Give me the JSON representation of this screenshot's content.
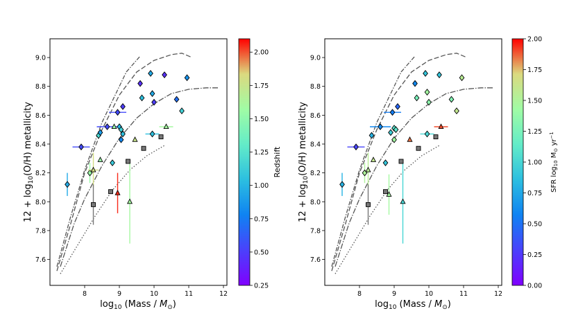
{
  "chart_data": [
    {
      "type": "scatter",
      "xlabel": "log$_{10}$ (Mass / $M_\\odot$)",
      "ylabel": "12 + log$_{10}$(O/H) metallicity",
      "x_ticks": [
        "8",
        "9",
        "10",
        "11",
        "12"
      ],
      "y_ticks": [
        "7.6",
        "7.8",
        "8.0",
        "8.2",
        "8.4",
        "8.6",
        "8.8",
        "9.0"
      ],
      "xlim": [
        7.0,
        12.1
      ],
      "ylim": [
        7.42,
        9.13
      ],
      "colorbar": {
        "label": "Redshift",
        "range": [
          0.25,
          2.1
        ],
        "ticks": [
          "0.25",
          "0.50",
          "0.75",
          "1.00",
          "1.25",
          "1.50",
          "1.75",
          "2.00"
        ]
      },
      "points": [
        {
          "x": 7.5,
          "y": 8.12,
          "marker": "diamond",
          "c": 0.95,
          "yerr": 0.08
        },
        {
          "x": 7.9,
          "y": 8.38,
          "marker": "diamond",
          "c": 0.55,
          "xerr": 0.25
        },
        {
          "x": 8.15,
          "y": 8.2,
          "marker": "diamond",
          "c": 1.55,
          "yerr": 0.07
        },
        {
          "x": 8.25,
          "y": 8.22,
          "marker": "triangle",
          "c": 1.8,
          "yerr": 0.12,
          "xerr": 0.15
        },
        {
          "x": 8.4,
          "y": 8.46,
          "marker": "diamond",
          "c": 1.2
        },
        {
          "x": 8.45,
          "y": 8.48,
          "marker": "diamond",
          "c": 0.9
        },
        {
          "x": 8.45,
          "y": 8.29,
          "marker": "triangle",
          "c": 1.55
        },
        {
          "x": 8.65,
          "y": 8.52,
          "marker": "diamond",
          "c": 0.55,
          "xerr": 0.3
        },
        {
          "x": 8.8,
          "y": 8.27,
          "marker": "diamond",
          "c": 1.1
        },
        {
          "x": 8.85,
          "y": 8.52,
          "marker": "triangle",
          "c": 1.55
        },
        {
          "x": 8.95,
          "y": 8.62,
          "marker": "diamond",
          "c": 0.55,
          "xerr": 0.25
        },
        {
          "x": 9.0,
          "y": 8.52,
          "marker": "diamond",
          "c": 1.0
        },
        {
          "x": 9.05,
          "y": 8.5,
          "marker": "diamond",
          "c": 1.15
        },
        {
          "x": 9.05,
          "y": 8.43,
          "marker": "diamond",
          "c": 0.8
        },
        {
          "x": 9.1,
          "y": 8.47,
          "marker": "diamond",
          "c": 1.05
        },
        {
          "x": 9.1,
          "y": 8.66,
          "marker": "diamond",
          "c": 0.5
        },
        {
          "x": 9.45,
          "y": 8.43,
          "marker": "triangle",
          "c": 1.75
        },
        {
          "x": 9.6,
          "y": 8.82,
          "marker": "diamond",
          "c": 0.45
        },
        {
          "x": 9.65,
          "y": 8.72,
          "marker": "diamond",
          "c": 1.05
        },
        {
          "x": 9.9,
          "y": 8.89,
          "marker": "diamond",
          "c": 0.95
        },
        {
          "x": 9.95,
          "y": 8.75,
          "marker": "diamond",
          "c": 0.95
        },
        {
          "x": 10.0,
          "y": 8.69,
          "marker": "diamond",
          "c": 0.5
        },
        {
          "x": 9.95,
          "y": 8.47,
          "marker": "diamond",
          "c": 1.05,
          "xerr": 0.2
        },
        {
          "x": 10.3,
          "y": 8.88,
          "marker": "diamond",
          "c": 0.45
        },
        {
          "x": 10.35,
          "y": 8.52,
          "marker": "triangle",
          "c": 1.6,
          "xerr": 0.2
        },
        {
          "x": 10.65,
          "y": 8.71,
          "marker": "diamond",
          "c": 0.7
        },
        {
          "x": 10.8,
          "y": 8.63,
          "marker": "diamond",
          "c": 1.15
        },
        {
          "x": 10.95,
          "y": 8.86,
          "marker": "diamond",
          "c": 0.85
        },
        {
          "x": 8.95,
          "y": 8.06,
          "marker": "triangle",
          "c": 2.05,
          "yerr": 0.14
        },
        {
          "x": 9.3,
          "y": 8.0,
          "marker": "triangle",
          "c": 1.6,
          "yerr": 0.29
        },
        {
          "x": 8.25,
          "y": 7.98,
          "marker": "square",
          "c": null,
          "yerr": 0.14
        },
        {
          "x": 8.75,
          "y": 8.07,
          "marker": "square",
          "c": null
        },
        {
          "x": 9.25,
          "y": 8.28,
          "marker": "square",
          "c": null
        },
        {
          "x": 9.7,
          "y": 8.37,
          "marker": "square",
          "c": null
        },
        {
          "x": 10.2,
          "y": 8.45,
          "marker": "square",
          "c": null
        }
      ]
    },
    {
      "type": "scatter",
      "xlabel": "log$_{10}$ (Mass / $M_\\odot$)",
      "ylabel": "12 + log$_{10}$(O/H) metallicity",
      "x_ticks": [
        "8",
        "9",
        "10",
        "11",
        "12"
      ],
      "y_ticks": [
        "7.6",
        "7.8",
        "8.0",
        "8.2",
        "8.4",
        "8.6",
        "8.8",
        "9.0"
      ],
      "xlim": [
        7.0,
        12.1
      ],
      "ylim": [
        7.42,
        9.13
      ],
      "colorbar": {
        "label": "SFR log$_{10}$ M$_\\odot$ yr$^{-1}$",
        "range": [
          0.0,
          2.0
        ],
        "ticks": [
          "0.00",
          "0.25",
          "0.50",
          "0.75",
          "1.00",
          "1.25",
          "1.50",
          "1.75",
          "2.00"
        ]
      },
      "points": [
        {
          "x": 7.5,
          "y": 8.12,
          "marker": "diamond",
          "c": 0.8,
          "yerr": 0.08
        },
        {
          "x": 7.9,
          "y": 8.38,
          "marker": "diamond",
          "c": 0.3,
          "xerr": 0.25
        },
        {
          "x": 8.15,
          "y": 8.2,
          "marker": "diamond",
          "c": 1.5,
          "yerr": 0.07
        },
        {
          "x": 8.25,
          "y": 8.22,
          "marker": "triangle",
          "c": 1.55,
          "yerr": 0.12
        },
        {
          "x": 8.35,
          "y": 8.46,
          "marker": "diamond",
          "c": 0.8
        },
        {
          "x": 8.4,
          "y": 8.29,
          "marker": "triangle",
          "c": 1.6
        },
        {
          "x": 8.6,
          "y": 8.52,
          "marker": "diamond",
          "c": 0.6,
          "xerr": 0.3
        },
        {
          "x": 8.75,
          "y": 8.27,
          "marker": "diamond",
          "c": 0.9
        },
        {
          "x": 8.85,
          "y": 8.05,
          "marker": "triangle",
          "c": 1.45,
          "yerr": 0.14
        },
        {
          "x": 8.9,
          "y": 8.48,
          "marker": "diamond",
          "c": 0.95
        },
        {
          "x": 8.95,
          "y": 8.62,
          "marker": "diamond",
          "c": 0.55,
          "xerr": 0.25
        },
        {
          "x": 9.0,
          "y": 8.51,
          "marker": "diamond",
          "c": 1.1
        },
        {
          "x": 9.0,
          "y": 8.43,
          "marker": "diamond",
          "c": 1.45
        },
        {
          "x": 9.05,
          "y": 8.5,
          "marker": "diamond",
          "c": 1.1
        },
        {
          "x": 9.1,
          "y": 8.66,
          "marker": "diamond",
          "c": 0.45
        },
        {
          "x": 9.25,
          "y": 8.0,
          "marker": "triangle",
          "c": 1.0,
          "yerr": 0.29
        },
        {
          "x": 9.45,
          "y": 8.43,
          "marker": "triangle",
          "c": 1.85
        },
        {
          "x": 9.6,
          "y": 8.82,
          "marker": "diamond",
          "c": 0.6
        },
        {
          "x": 9.65,
          "y": 8.72,
          "marker": "diamond",
          "c": 1.25
        },
        {
          "x": 9.9,
          "y": 8.89,
          "marker": "diamond",
          "c": 0.9
        },
        {
          "x": 9.95,
          "y": 8.76,
          "marker": "diamond",
          "c": 1.45
        },
        {
          "x": 10.0,
          "y": 8.69,
          "marker": "diamond",
          "c": 1.35
        },
        {
          "x": 9.95,
          "y": 8.47,
          "marker": "diamond",
          "c": 1.0,
          "xerr": 0.2
        },
        {
          "x": 10.3,
          "y": 8.88,
          "marker": "diamond",
          "c": 0.9
        },
        {
          "x": 10.35,
          "y": 8.52,
          "marker": "triangle",
          "c": 1.9,
          "xerr": 0.2
        },
        {
          "x": 10.65,
          "y": 8.71,
          "marker": "diamond",
          "c": 1.3
        },
        {
          "x": 10.8,
          "y": 8.63,
          "marker": "diamond",
          "c": 1.6
        },
        {
          "x": 10.95,
          "y": 8.86,
          "marker": "diamond",
          "c": 1.55
        },
        {
          "x": 8.25,
          "y": 7.98,
          "marker": "square",
          "c": null,
          "yerr": 0.14
        },
        {
          "x": 8.75,
          "y": 8.07,
          "marker": "square",
          "c": null
        },
        {
          "x": 9.2,
          "y": 8.28,
          "marker": "square",
          "c": null
        },
        {
          "x": 9.7,
          "y": 8.37,
          "marker": "square",
          "c": null
        },
        {
          "x": 10.2,
          "y": 8.45,
          "marker": "square",
          "c": null
        }
      ]
    }
  ],
  "reference_curves": [
    {
      "style": "dashed",
      "points": [
        [
          7.2,
          7.52
        ],
        [
          7.6,
          7.85
        ],
        [
          8.0,
          8.2
        ],
        [
          8.5,
          8.5
        ],
        [
          9.0,
          8.74
        ],
        [
          9.5,
          8.9
        ],
        [
          10.0,
          8.98
        ],
        [
          10.5,
          9.02
        ],
        [
          10.8,
          9.03
        ],
        [
          11.1,
          9.0
        ]
      ]
    },
    {
      "style": "dashdot",
      "points": [
        [
          7.2,
          7.55
        ],
        [
          7.6,
          7.9
        ],
        [
          8.0,
          8.22
        ],
        [
          8.5,
          8.55
        ],
        [
          9.0,
          8.8
        ],
        [
          9.2,
          8.9
        ],
        [
          9.6,
          9.01
        ]
      ]
    },
    {
      "style": "dashdot2",
      "points": [
        [
          7.3,
          7.55
        ],
        [
          7.7,
          7.85
        ],
        [
          8.0,
          8.02
        ],
        [
          8.5,
          8.25
        ],
        [
          9.0,
          8.44
        ],
        [
          9.5,
          8.58
        ],
        [
          10.0,
          8.68
        ],
        [
          10.5,
          8.75
        ],
        [
          11.0,
          8.78
        ],
        [
          11.5,
          8.79
        ],
        [
          11.85,
          8.79
        ]
      ]
    },
    {
      "style": "dotted",
      "points": [
        [
          7.3,
          7.5
        ],
        [
          7.8,
          7.7
        ],
        [
          8.3,
          7.9
        ],
        [
          8.8,
          8.08
        ],
        [
          9.3,
          8.22
        ],
        [
          9.8,
          8.32
        ],
        [
          10.3,
          8.39
        ]
      ]
    }
  ]
}
